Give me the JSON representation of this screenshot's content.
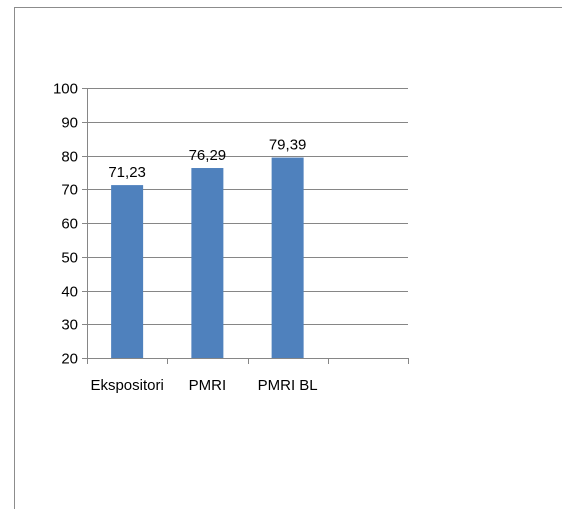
{
  "chart_data": {
    "type": "bar",
    "title": "",
    "xlabel": "",
    "ylabel": "",
    "categories": [
      "Ekspositori",
      "PMRI",
      "PMRI BL",
      ""
    ],
    "values": [
      71.23,
      76.29,
      79.39,
      null
    ],
    "data_labels": [
      "71,23",
      "76,29",
      "79,39",
      ""
    ],
    "ylim": [
      20,
      100
    ],
    "yticks": [
      20,
      30,
      40,
      50,
      60,
      70,
      80,
      90,
      100
    ],
    "ytick_labels": [
      "20",
      "30",
      "40",
      "50",
      "60",
      "70",
      "80",
      "90",
      "100"
    ],
    "grid": true,
    "legend": "none",
    "bar_color": "#4f81bd",
    "grid_color": "#868686"
  }
}
